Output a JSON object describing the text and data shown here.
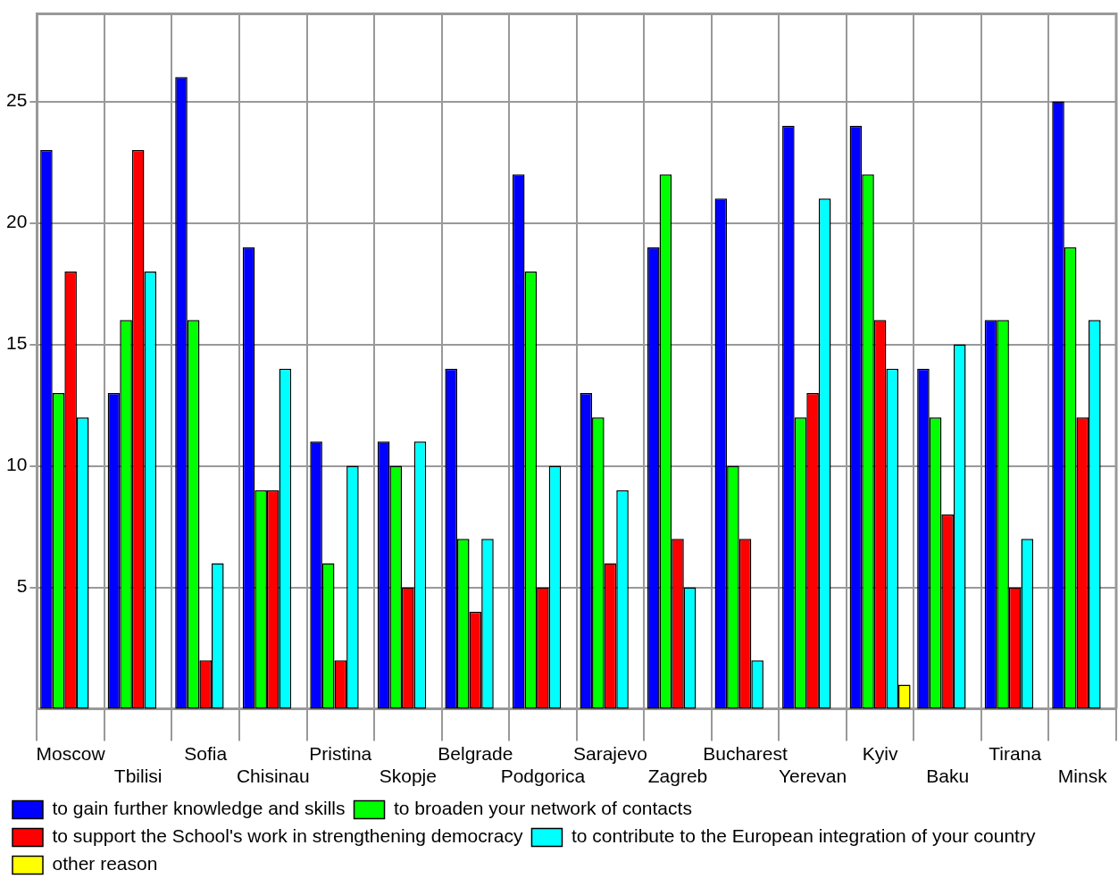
{
  "chart_data": {
    "type": "bar",
    "categories": [
      "Moscow",
      "Tbilisi",
      "Sofia",
      "Chisinau",
      "Pristina",
      "Skopje",
      "Belgrade",
      "Podgorica",
      "Sarajevo",
      "Zagreb",
      "Bucharest",
      "Yerevan",
      "Kyiv",
      "Baku",
      "Tirana",
      "Minsk"
    ],
    "series": [
      {
        "name": "to gain further knowledge and skills",
        "color": "#0000ff",
        "values": [
          23,
          13,
          26,
          19,
          11,
          11,
          14,
          22,
          13,
          19,
          21,
          24,
          24,
          14,
          16,
          25
        ]
      },
      {
        "name": "to broaden your network of contacts",
        "color": "#00ff00",
        "values": [
          13,
          16,
          16,
          9,
          6,
          10,
          7,
          18,
          12,
          22,
          10,
          12,
          22,
          12,
          16,
          19
        ]
      },
      {
        "name": "to support the School's work in strengthening democracy",
        "color": "#ff0000",
        "values": [
          18,
          23,
          2,
          9,
          2,
          5,
          4,
          5,
          6,
          7,
          7,
          13,
          16,
          8,
          5,
          12
        ]
      },
      {
        "name": "to contribute to the European integration of your country",
        "color": "#00ffff",
        "values": [
          12,
          18,
          6,
          14,
          10,
          11,
          7,
          10,
          9,
          5,
          2,
          21,
          14,
          15,
          7,
          16
        ]
      },
      {
        "name": "other reason",
        "color": "#ffff00",
        "values": [
          0,
          0,
          0,
          0,
          0,
          0,
          0,
          0,
          0,
          0,
          0,
          0,
          1,
          0,
          0,
          0
        ]
      }
    ],
    "ylim": [
      0,
      28.6
    ],
    "yticks": [
      5,
      10,
      15,
      20,
      25
    ],
    "grid": true,
    "legend": "bottom"
  }
}
